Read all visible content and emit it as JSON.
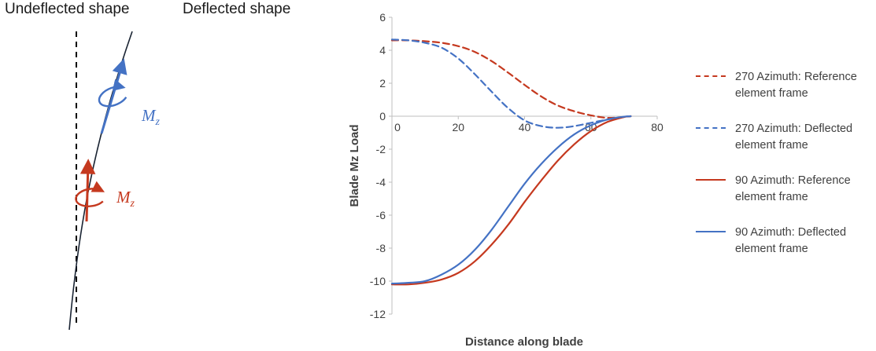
{
  "diagram": {
    "undeflected_label": "Undeflected shape",
    "deflected_label": "Deflected shape",
    "moment_symbol": "M",
    "moment_subscript": "z",
    "blue_color": "#4472C4",
    "red_color": "#C5391F"
  },
  "chart_data": {
    "type": "line",
    "title": "",
    "xlabel": "Distance along blade",
    "ylabel": "Blade Mz Load",
    "xlim": [
      0,
      80
    ],
    "ylim": [
      -12,
      6
    ],
    "xticks": [
      0,
      20,
      40,
      60,
      80
    ],
    "yticks": [
      6,
      4,
      2,
      0,
      -2,
      -4,
      -6,
      -8,
      -10,
      -12
    ],
    "grid": false,
    "legend_position": "right",
    "x": [
      0,
      5,
      10,
      15,
      20,
      25,
      30,
      35,
      40,
      45,
      50,
      55,
      60,
      65,
      70,
      72
    ],
    "series": [
      {
        "name": "270 Azimuth: Reference element frame",
        "style": "dashed",
        "color": "#C5391F",
        "values": [
          4.6,
          4.6,
          4.55,
          4.45,
          4.25,
          3.9,
          3.35,
          2.65,
          1.9,
          1.2,
          0.65,
          0.3,
          0.05,
          -0.1,
          -0.05,
          0
        ]
      },
      {
        "name": "270 Azimuth: Deflected element frame",
        "style": "dashed",
        "color": "#4472C4",
        "values": [
          4.65,
          4.6,
          4.45,
          4.15,
          3.5,
          2.55,
          1.5,
          0.5,
          -0.25,
          -0.6,
          -0.7,
          -0.6,
          -0.4,
          -0.2,
          -0.05,
          0
        ]
      },
      {
        "name": "90 Azimuth: Reference element frame",
        "style": "solid",
        "color": "#C5391F",
        "values": [
          -10.2,
          -10.2,
          -10.1,
          -9.9,
          -9.5,
          -8.8,
          -7.8,
          -6.6,
          -5.2,
          -3.9,
          -2.7,
          -1.7,
          -0.9,
          -0.35,
          -0.05,
          0
        ]
      },
      {
        "name": "90 Azimuth: Deflected element frame",
        "style": "solid",
        "color": "#4472C4",
        "values": [
          -10.15,
          -10.1,
          -10.0,
          -9.6,
          -9.0,
          -8.1,
          -6.9,
          -5.5,
          -4.1,
          -2.9,
          -1.9,
          -1.1,
          -0.55,
          -0.2,
          -0.03,
          0
        ]
      }
    ]
  }
}
